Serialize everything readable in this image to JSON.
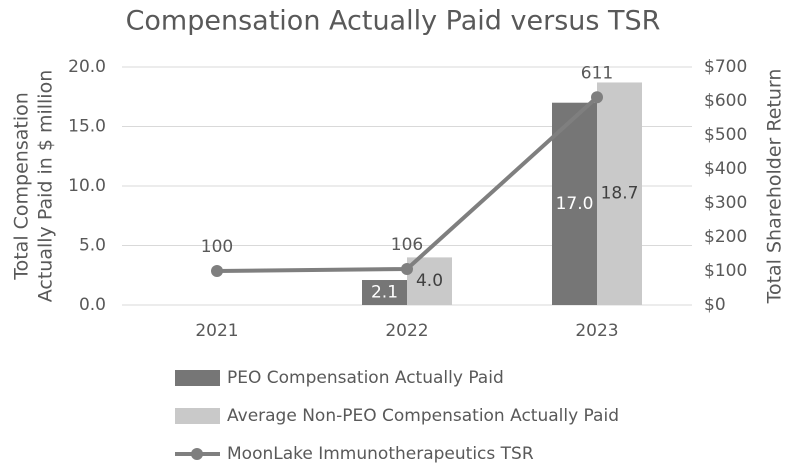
{
  "chart_data": {
    "type": "bar_line",
    "title": "Compensation Actually Paid versus TSR",
    "ylabel": [
      "Total Compensation",
      "Actually Paid in $ million"
    ],
    "y2label": "Total Shareholder Return",
    "categories": [
      "2021",
      "2022",
      "2023"
    ],
    "series": [
      {
        "name": "PEO Compensation Actually Paid",
        "type": "bar",
        "color": "#767676",
        "values": [
          null,
          2.1,
          17.0
        ],
        "value_labels": [
          null,
          "2.1",
          "17.0"
        ]
      },
      {
        "name": "Average Non-PEO Compensation Actually Paid",
        "type": "bar",
        "color": "#c9c9c9",
        "values": [
          null,
          4.0,
          18.7
        ],
        "value_labels": [
          null,
          "4.0",
          "18.7"
        ]
      },
      {
        "name": "MoonLake Immunotherapeutics TSR",
        "type": "line",
        "axis": "y2",
        "color": "#7f7f7f",
        "values": [
          100,
          106,
          611
        ]
      }
    ],
    "ylim": [
      0,
      20
    ],
    "yticks": [
      {
        "value": 0,
        "label": "0.0"
      },
      {
        "value": 5,
        "label": "5.0"
      },
      {
        "value": 10,
        "label": "10.0"
      },
      {
        "value": 15,
        "label": "15.0"
      },
      {
        "value": 20,
        "label": "20.0"
      }
    ],
    "y2lim": [
      0,
      700
    ],
    "y2ticks": [
      {
        "value": 0,
        "label": "$0"
      },
      {
        "value": 100,
        "label": "$100"
      },
      {
        "value": 200,
        "label": "$200"
      },
      {
        "value": 300,
        "label": "$300"
      },
      {
        "value": 400,
        "label": "$400"
      },
      {
        "value": 500,
        "label": "$500"
      },
      {
        "value": 600,
        "label": "$600"
      },
      {
        "value": 700,
        "label": "$700"
      }
    ],
    "grid": true,
    "legend": "bottom"
  }
}
